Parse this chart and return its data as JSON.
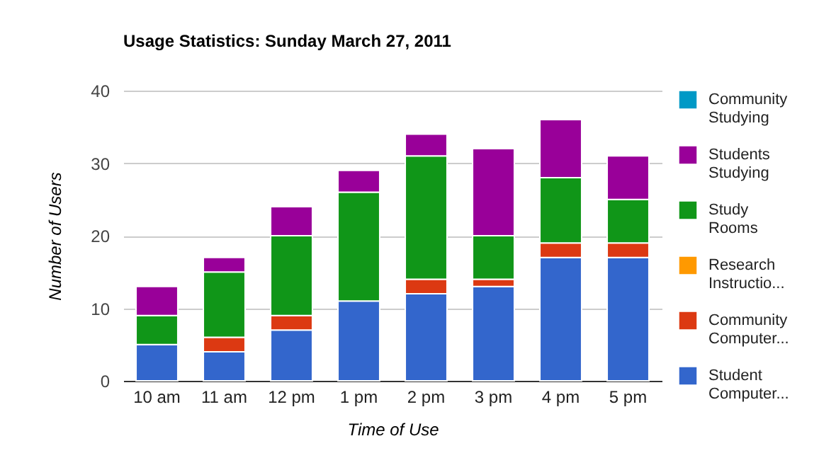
{
  "chart_data": {
    "type": "bar",
    "title": "Usage Statistics: Sunday March 27, 2011",
    "xlabel": "Time of Use",
    "ylabel": "Number of Users",
    "categories": [
      "10 am",
      "11 am",
      "12 pm",
      "1 pm",
      "2 pm",
      "3 pm",
      "4 pm",
      "5 pm"
    ],
    "stacked": true,
    "ylim": [
      0,
      40
    ],
    "yticks": [
      0,
      10,
      20,
      30,
      40
    ],
    "grid": "y",
    "legend": "right",
    "series": [
      {
        "name": "Student Computer...",
        "color": "#3366cc",
        "values": [
          5,
          4,
          7,
          11,
          12,
          13,
          17,
          17
        ]
      },
      {
        "name": "Community Computer...",
        "color": "#dc3912",
        "values": [
          0,
          2,
          2,
          0,
          2,
          1,
          2,
          2
        ]
      },
      {
        "name": "Research Instructio...",
        "color": "#ff9900",
        "values": [
          0,
          0,
          0,
          0,
          0,
          0,
          0,
          0
        ]
      },
      {
        "name": "Study Rooms",
        "color": "#109618",
        "values": [
          4,
          9,
          11,
          15,
          17,
          6,
          9,
          6
        ]
      },
      {
        "name": "Students Studying",
        "color": "#990099",
        "values": [
          4,
          2,
          4,
          3,
          3,
          12,
          8,
          6
        ]
      },
      {
        "name": "Community Studying",
        "color": "#0099c6",
        "values": [
          0,
          0,
          0,
          0,
          0,
          0,
          0,
          0
        ]
      }
    ]
  }
}
